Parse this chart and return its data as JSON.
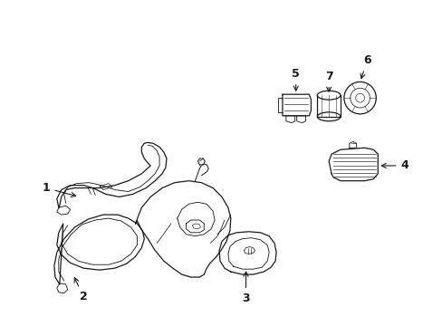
{
  "bg_color": "#ffffff",
  "line_color": "#1a1a1a",
  "lw": 0.9,
  "fig_width": 4.89,
  "fig_height": 3.6,
  "dpi": 100
}
